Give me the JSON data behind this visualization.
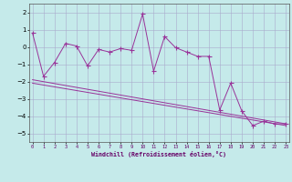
{
  "xlabel": "Windchill (Refroidissement éolien,°C)",
  "x_ticks": [
    0,
    1,
    2,
    3,
    4,
    5,
    6,
    7,
    8,
    9,
    10,
    11,
    12,
    13,
    14,
    15,
    16,
    17,
    18,
    19,
    20,
    21,
    22,
    23
  ],
  "ylim": [
    -5.5,
    2.5
  ],
  "yticks": [
    -5,
    -4,
    -3,
    -2,
    -1,
    0,
    1,
    2
  ],
  "xlim": [
    -0.3,
    23.3
  ],
  "bg_color": "#c5eaea",
  "line_color": "#993399",
  "grid_color": "#aaaacc",
  "series1_x": [
    0,
    1,
    2,
    3,
    4,
    5,
    6,
    7,
    8,
    9,
    10,
    11,
    12,
    13,
    14,
    15,
    16,
    17,
    18,
    19,
    20,
    21,
    22,
    23
  ],
  "series1_y": [
    0.8,
    -1.7,
    -0.9,
    0.2,
    0.05,
    -1.1,
    -0.15,
    -0.3,
    -0.1,
    -0.2,
    1.9,
    -1.4,
    0.6,
    -0.05,
    -0.3,
    -0.55,
    -0.55,
    -3.65,
    -2.1,
    -3.7,
    -4.55,
    -4.3,
    -4.45,
    -4.45
  ],
  "series2_x": [
    0,
    23
  ],
  "series2_y": [
    -1.9,
    -4.45
  ],
  "series3_x": [
    0,
    23
  ],
  "series3_y": [
    -2.1,
    -4.55
  ]
}
